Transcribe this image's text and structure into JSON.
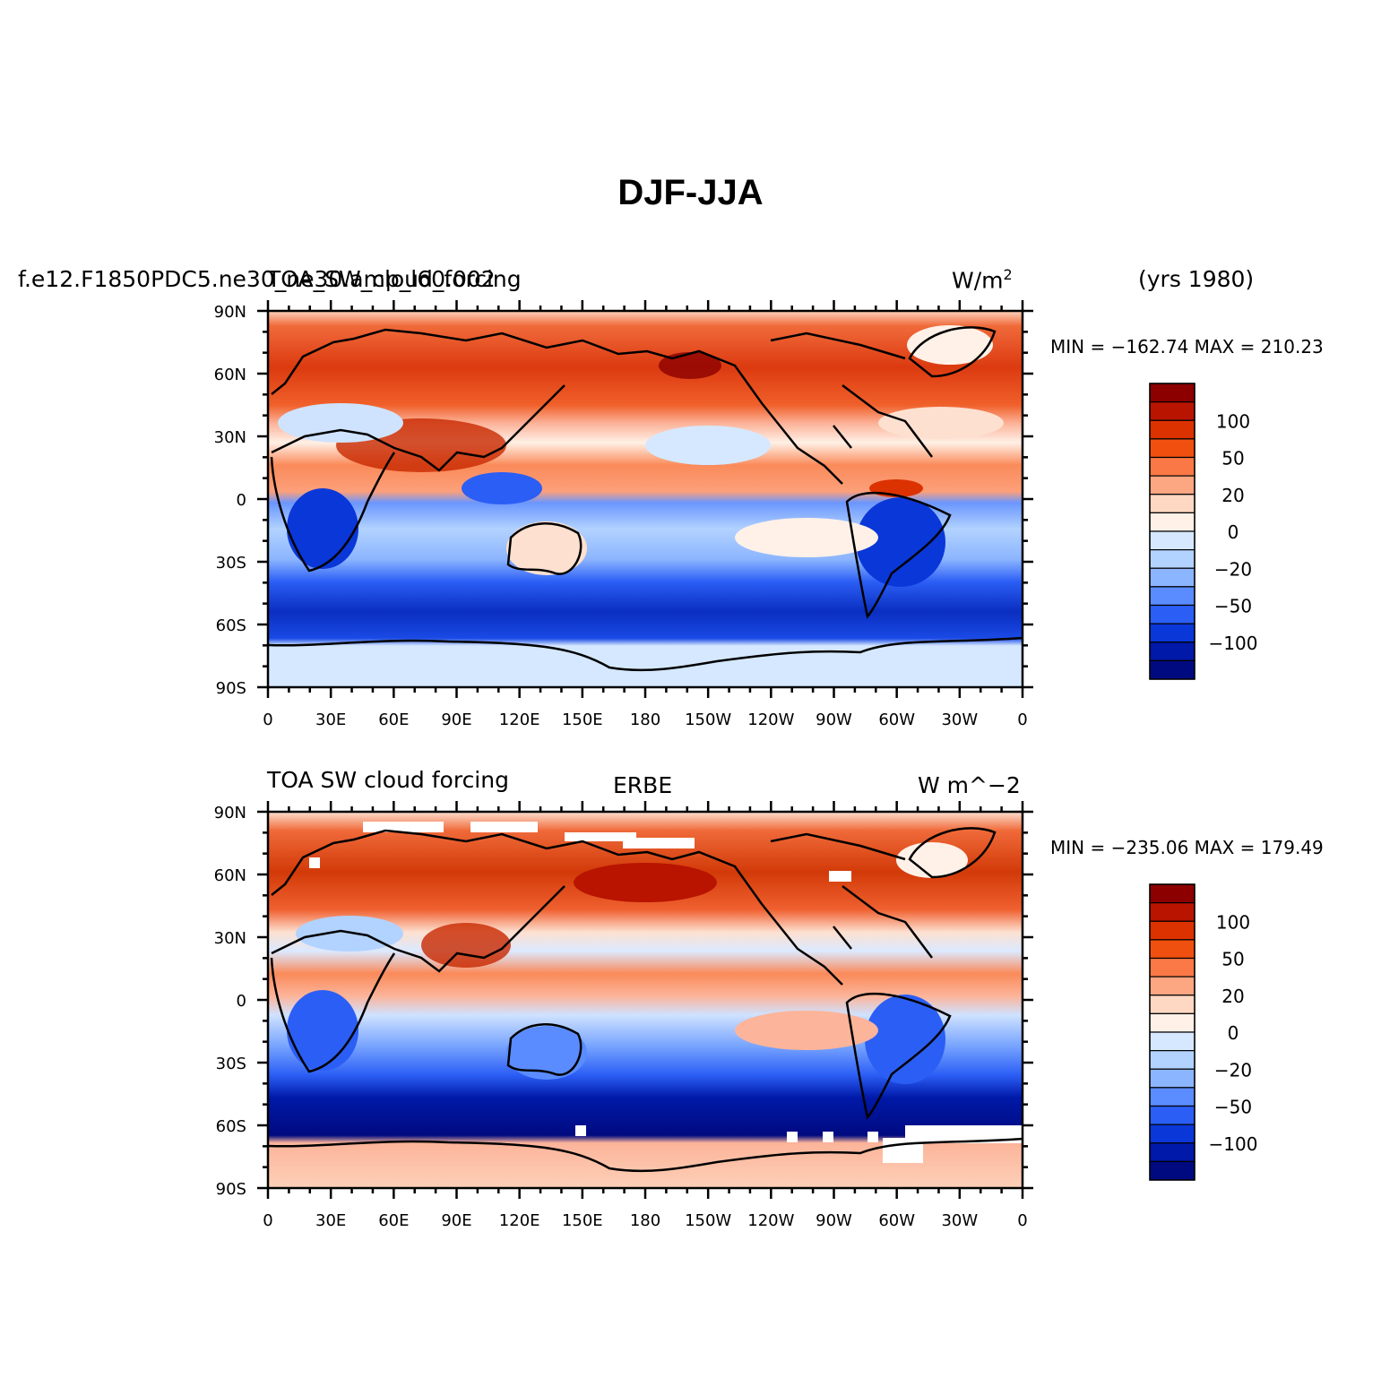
{
  "title": "DJF-JJA",
  "units_sup": "2",
  "lon_ticks": [
    "0",
    "30E",
    "60E",
    "90E",
    "120E",
    "150E",
    "180",
    "150W",
    "120W",
    "90W",
    "60W",
    "30W",
    "0"
  ],
  "lat_ticks": [
    "90N",
    "60N",
    "30N",
    "0",
    "30S",
    "60S",
    "90S"
  ],
  "colorbar": {
    "labels": [
      "100",
      "50",
      "20",
      "0",
      "−20",
      "−50",
      "−100"
    ],
    "colors": [
      "#8c0000",
      "#b81400",
      "#dc3200",
      "#f0500f",
      "#fa7846",
      "#fca682",
      "#fed8c2",
      "#fff1e8",
      "#d5e8ff",
      "#b2d2ff",
      "#8cb5ff",
      "#5a8cff",
      "#2b5ef5",
      "#0a37d8",
      "#0019a8",
      "#000a80"
    ]
  },
  "panels": [
    {
      "left_label": "f.e12.F1850PDC5.ne30_ne30.amp_l60.002",
      "center_label": "TOA_SW_cloud_forcing",
      "right_label": "W/m",
      "years": "(yrs 1980)",
      "min_max": "MIN = −162.74  MAX = 210.23"
    },
    {
      "left_label": "TOA SW cloud forcing",
      "center_label": "ERBE",
      "right_label": "W m^−2",
      "min_max": "MIN = −235.06  MAX = 179.49"
    }
  ]
}
